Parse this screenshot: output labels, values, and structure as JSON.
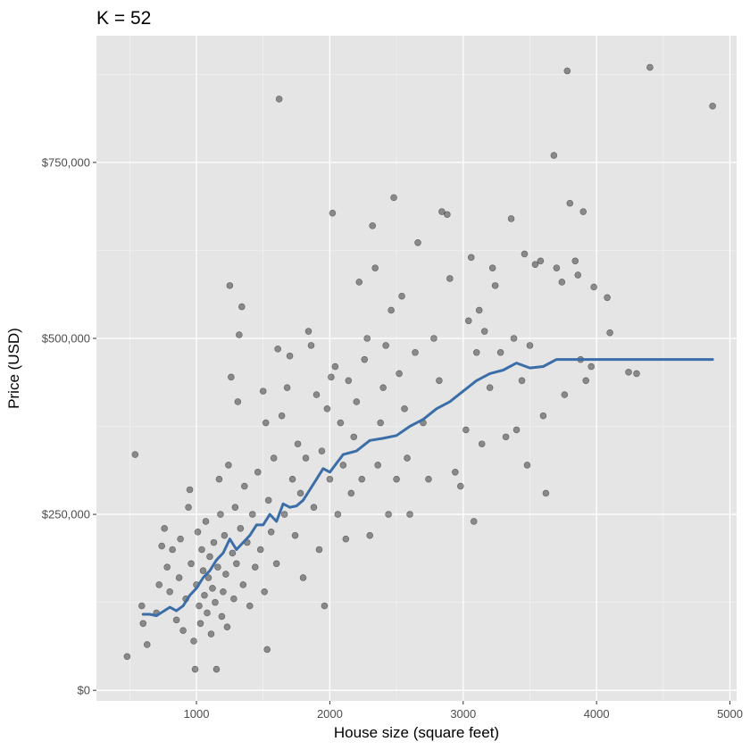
{
  "chart_data": {
    "type": "scatter",
    "title": "K = 52",
    "xlabel": "House size (square feet)",
    "ylabel": "Price (USD)",
    "xlim": [
      250,
      5050
    ],
    "ylim": [
      -15000,
      930000
    ],
    "x_ticks": [
      {
        "value": 1000,
        "label": "1000"
      },
      {
        "value": 2000,
        "label": "2000"
      },
      {
        "value": 3000,
        "label": "3000"
      },
      {
        "value": 4000,
        "label": "4000"
      },
      {
        "value": 5000,
        "label": "5000"
      }
    ],
    "y_ticks": [
      {
        "value": 0,
        "label": "$0"
      },
      {
        "value": 250000,
        "label": "$250,000"
      },
      {
        "value": 500000,
        "label": "$500,000"
      },
      {
        "value": 750000,
        "label": "$750,000"
      }
    ],
    "grid": true,
    "colors": {
      "panel_background": "#e5e5e5",
      "grid_major": "#ffffff",
      "grid_minor": "#f2f2f2",
      "points": "#000000",
      "line": "#3b6ea8"
    },
    "points": [
      [
        480,
        48000
      ],
      [
        540,
        335000
      ],
      [
        590,
        120000
      ],
      [
        600,
        95000
      ],
      [
        630,
        65000
      ],
      [
        700,
        110000
      ],
      [
        720,
        150000
      ],
      [
        740,
        205000
      ],
      [
        760,
        230000
      ],
      [
        780,
        175000
      ],
      [
        800,
        140000
      ],
      [
        820,
        200000
      ],
      [
        850,
        100000
      ],
      [
        870,
        160000
      ],
      [
        880,
        215000
      ],
      [
        900,
        85000
      ],
      [
        920,
        130000
      ],
      [
        940,
        260000
      ],
      [
        950,
        285000
      ],
      [
        960,
        180000
      ],
      [
        980,
        70000
      ],
      [
        990,
        30000
      ],
      [
        1000,
        150000
      ],
      [
        1010,
        225000
      ],
      [
        1020,
        120000
      ],
      [
        1030,
        95000
      ],
      [
        1040,
        200000
      ],
      [
        1050,
        170000
      ],
      [
        1060,
        135000
      ],
      [
        1070,
        240000
      ],
      [
        1080,
        110000
      ],
      [
        1090,
        160000
      ],
      [
        1100,
        190000
      ],
      [
        1110,
        80000
      ],
      [
        1120,
        145000
      ],
      [
        1130,
        210000
      ],
      [
        1140,
        125000
      ],
      [
        1150,
        30000
      ],
      [
        1160,
        175000
      ],
      [
        1170,
        300000
      ],
      [
        1180,
        250000
      ],
      [
        1190,
        105000
      ],
      [
        1200,
        140000
      ],
      [
        1210,
        220000
      ],
      [
        1220,
        165000
      ],
      [
        1230,
        90000
      ],
      [
        1240,
        320000
      ],
      [
        1250,
        575000
      ],
      [
        1260,
        445000
      ],
      [
        1270,
        195000
      ],
      [
        1280,
        130000
      ],
      [
        1290,
        260000
      ],
      [
        1300,
        180000
      ],
      [
        1310,
        410000
      ],
      [
        1320,
        505000
      ],
      [
        1330,
        230000
      ],
      [
        1340,
        545000
      ],
      [
        1350,
        150000
      ],
      [
        1360,
        290000
      ],
      [
        1380,
        210000
      ],
      [
        1400,
        120000
      ],
      [
        1420,
        250000
      ],
      [
        1440,
        175000
      ],
      [
        1460,
        310000
      ],
      [
        1480,
        200000
      ],
      [
        1500,
        425000
      ],
      [
        1510,
        140000
      ],
      [
        1520,
        380000
      ],
      [
        1530,
        58000
      ],
      [
        1540,
        270000
      ],
      [
        1560,
        225000
      ],
      [
        1580,
        330000
      ],
      [
        1600,
        180000
      ],
      [
        1610,
        485000
      ],
      [
        1620,
        840000
      ],
      [
        1640,
        390000
      ],
      [
        1660,
        250000
      ],
      [
        1680,
        430000
      ],
      [
        1700,
        475000
      ],
      [
        1720,
        300000
      ],
      [
        1740,
        220000
      ],
      [
        1760,
        350000
      ],
      [
        1780,
        280000
      ],
      [
        1800,
        160000
      ],
      [
        1820,
        330000
      ],
      [
        1840,
        510000
      ],
      [
        1860,
        490000
      ],
      [
        1880,
        260000
      ],
      [
        1900,
        420000
      ],
      [
        1920,
        200000
      ],
      [
        1940,
        340000
      ],
      [
        1960,
        120000
      ],
      [
        1980,
        400000
      ],
      [
        2000,
        300000
      ],
      [
        2010,
        445000
      ],
      [
        2020,
        678000
      ],
      [
        2040,
        460000
      ],
      [
        2060,
        250000
      ],
      [
        2080,
        380000
      ],
      [
        2100,
        320000
      ],
      [
        2120,
        215000
      ],
      [
        2140,
        440000
      ],
      [
        2160,
        280000
      ],
      [
        2180,
        360000
      ],
      [
        2200,
        410000
      ],
      [
        2220,
        580000
      ],
      [
        2240,
        300000
      ],
      [
        2260,
        470000
      ],
      [
        2280,
        500000
      ],
      [
        2300,
        220000
      ],
      [
        2320,
        660000
      ],
      [
        2340,
        600000
      ],
      [
        2360,
        320000
      ],
      [
        2380,
        380000
      ],
      [
        2400,
        430000
      ],
      [
        2420,
        490000
      ],
      [
        2440,
        250000
      ],
      [
        2460,
        540000
      ],
      [
        2480,
        700000
      ],
      [
        2500,
        300000
      ],
      [
        2520,
        450000
      ],
      [
        2540,
        560000
      ],
      [
        2560,
        400000
      ],
      [
        2580,
        330000
      ],
      [
        2600,
        250000
      ],
      [
        2640,
        480000
      ],
      [
        2660,
        636000
      ],
      [
        2700,
        380000
      ],
      [
        2740,
        300000
      ],
      [
        2780,
        500000
      ],
      [
        2820,
        440000
      ],
      [
        2840,
        680000
      ],
      [
        2880,
        676000
      ],
      [
        2900,
        585000
      ],
      [
        2940,
        310000
      ],
      [
        2980,
        290000
      ],
      [
        3020,
        370000
      ],
      [
        3040,
        525000
      ],
      [
        3060,
        615000
      ],
      [
        3080,
        240000
      ],
      [
        3100,
        480000
      ],
      [
        3120,
        540000
      ],
      [
        3140,
        350000
      ],
      [
        3160,
        510000
      ],
      [
        3200,
        430000
      ],
      [
        3220,
        600000
      ],
      [
        3240,
        575000
      ],
      [
        3280,
        480000
      ],
      [
        3320,
        360000
      ],
      [
        3360,
        670000
      ],
      [
        3380,
        500000
      ],
      [
        3400,
        370000
      ],
      [
        3440,
        440000
      ],
      [
        3460,
        620000
      ],
      [
        3480,
        320000
      ],
      [
        3500,
        490000
      ],
      [
        3540,
        605000
      ],
      [
        3580,
        610000
      ],
      [
        3600,
        390000
      ],
      [
        3620,
        280000
      ],
      [
        3680,
        760000
      ],
      [
        3700,
        600000
      ],
      [
        3740,
        580000
      ],
      [
        3760,
        420000
      ],
      [
        3780,
        880000
      ],
      [
        3800,
        692000
      ],
      [
        3840,
        610000
      ],
      [
        3860,
        590000
      ],
      [
        3880,
        470000
      ],
      [
        3900,
        680000
      ],
      [
        3920,
        440000
      ],
      [
        3960,
        460000
      ],
      [
        3980,
        573000
      ],
      [
        4080,
        558000
      ],
      [
        4100,
        508000
      ],
      [
        4240,
        452000
      ],
      [
        4300,
        450000
      ],
      [
        4400,
        885000
      ],
      [
        4870,
        830000
      ]
    ],
    "line": {
      "name": "",
      "x": [
        600,
        650,
        700,
        750,
        800,
        850,
        900,
        950,
        1000,
        1050,
        1100,
        1150,
        1200,
        1250,
        1300,
        1350,
        1400,
        1450,
        1500,
        1550,
        1600,
        1650,
        1700,
        1750,
        1800,
        1850,
        1900,
        1950,
        2000,
        2100,
        2200,
        2300,
        2400,
        2500,
        2600,
        2700,
        2800,
        2900,
        3000,
        3100,
        3200,
        3300,
        3400,
        3500,
        3600,
        3700,
        3800,
        3900,
        4000,
        4200,
        4400,
        4600,
        4870
      ],
      "y": [
        108000,
        108000,
        106000,
        112000,
        118000,
        113000,
        120000,
        135000,
        145000,
        160000,
        170000,
        185000,
        195000,
        215000,
        200000,
        210000,
        220000,
        235000,
        235000,
        250000,
        240000,
        265000,
        260000,
        262000,
        270000,
        285000,
        300000,
        315000,
        310000,
        335000,
        340000,
        355000,
        358000,
        362000,
        375000,
        385000,
        400000,
        410000,
        425000,
        440000,
        450000,
        455000,
        465000,
        458000,
        460000,
        470000,
        470000,
        470000,
        470000,
        470000,
        470000,
        470000,
        470000
      ]
    }
  }
}
